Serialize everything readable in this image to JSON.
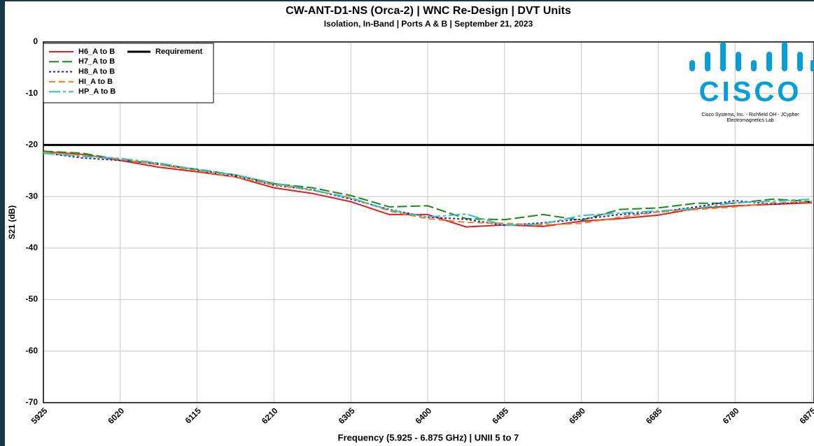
{
  "chart_data": {
    "type": "line",
    "title": "CW-ANT-D1-NS (Orca-2) | WNC Re-Design | DVT Units",
    "subtitle": "Isolation, In-Band | Ports A & B | September 21, 2023",
    "x_label": "Frequency (5.925 - 6.875 GHz) | UNII 5 to 7",
    "y_label": "S21 (dB)",
    "x": [
      5925,
      5972.5,
      6020,
      6067.5,
      6115,
      6162.5,
      6210,
      6257.5,
      6305,
      6352.5,
      6400,
      6447.5,
      6495,
      6542.5,
      6590,
      6637.5,
      6685,
      6732.5,
      6780,
      6827.5,
      6875
    ],
    "series": [
      {
        "name": "H6_A to B",
        "color": "#e02020",
        "dash": "solid",
        "values": [
          -21.3,
          -21.8,
          -23,
          -24.3,
          -25.2,
          -26.2,
          -28.3,
          -29.4,
          -31,
          -33.5,
          -33.5,
          -35.9,
          -35.5,
          -35.8,
          -34.8,
          -34.3,
          -33.6,
          -32.3,
          -31.8,
          -31.5,
          -31.2
        ]
      },
      {
        "name": "H7_A to B",
        "color": "#1a8a1a",
        "dash": "longdash",
        "values": [
          -21.2,
          -21.6,
          -22.8,
          -23.8,
          -24.7,
          -25.8,
          -27.5,
          -28.3,
          -29.8,
          -32,
          -31.8,
          -34.3,
          -34.5,
          -33.5,
          -34.6,
          -32.5,
          -32.2,
          -31.3,
          -31.3,
          -30.5,
          -31
        ]
      },
      {
        "name": "H8_A to B",
        "color": "#2020c0",
        "dash": "dot",
        "values": [
          -21.5,
          -22.5,
          -23,
          -23.6,
          -24.9,
          -26,
          -27.8,
          -28.7,
          -30.5,
          -32.5,
          -34,
          -34.4,
          -35.6,
          -35.1,
          -34.4,
          -33.5,
          -33,
          -32,
          -30.8,
          -31.5,
          -31
        ]
      },
      {
        "name": "HI_A to B",
        "color": "#f08020",
        "dash": "dash",
        "values": [
          -21.4,
          -22,
          -22.8,
          -23.8,
          -25,
          -26.2,
          -27.7,
          -28.8,
          -30.2,
          -32.8,
          -34.3,
          -35,
          -35.2,
          -35.5,
          -35.2,
          -34,
          -33,
          -32.5,
          -32,
          -31.2,
          -31
        ]
      },
      {
        "name": "HP_A to B",
        "color": "#30c0c8",
        "dash": "dashdot",
        "values": [
          -21.6,
          -22.2,
          -22.6,
          -23.5,
          -24.8,
          -25.8,
          -27.4,
          -28.7,
          -30.3,
          -32.6,
          -34,
          -33.4,
          -35.6,
          -35.3,
          -33.7,
          -33.2,
          -32.8,
          -32.3,
          -31.2,
          -30.9,
          -30.5
        ]
      }
    ],
    "reference_line": {
      "name": "Requirement",
      "color": "#000000",
      "value": -20
    },
    "xlim": [
      5925,
      6875
    ],
    "xticks": [
      5925,
      6020,
      6115,
      6210,
      6305,
      6400,
      6495,
      6590,
      6685,
      6780,
      6875
    ],
    "ylim": [
      -70,
      0
    ],
    "yticks": [
      0,
      -10,
      -20,
      -30,
      -40,
      -50,
      -60,
      -70
    ],
    "grid": true,
    "legend": "top-left",
    "logo": {
      "brand": "CISCO",
      "line1": "Cisco Systems, Inc. - Richfield OH - JCypher",
      "line2": "Electromagnetics Lab"
    }
  }
}
